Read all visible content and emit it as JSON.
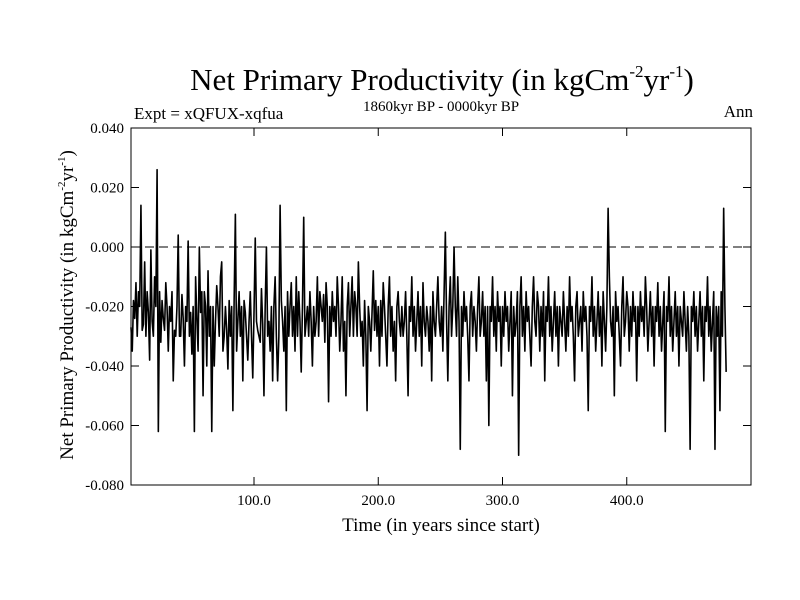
{
  "chart_data": {
    "type": "line",
    "title_main": "Net Primary Productivity (in kgCm",
    "title_sup1": "-2",
    "title_mid": "yr",
    "title_sup2": "-1",
    "title_end": ")",
    "expt_label": "Expt = xQFUX-xqfua",
    "period_label": "1860kyr BP - 0000kyr BP",
    "season_label": "Ann",
    "xlabel": "Time (in years since start)",
    "ylabel_main": "Net Primary Productivity (in kgCm",
    "ylabel_sup1": "-2",
    "ylabel_mid": "yr",
    "ylabel_sup2": "-1",
    "ylabel_end": ")",
    "xlim": [
      1,
      500
    ],
    "ylim": [
      -0.08,
      0.04
    ],
    "x_ticks": [
      100,
      200,
      300,
      400
    ],
    "x_tick_labels": [
      "100.0",
      "200.0",
      "300.0",
      "400.0"
    ],
    "y_ticks": [
      0.04,
      0.02,
      0.0,
      -0.02,
      -0.04,
      -0.06,
      -0.08
    ],
    "y_tick_labels": [
      "0.040",
      "0.020",
      "0.000",
      "-0.020",
      "-0.040",
      "-0.060",
      "-0.080"
    ],
    "reference_line": 0.0,
    "series": [
      {
        "name": "Net Primary Productivity",
        "x_start": 1,
        "x_step": 1,
        "values": [
          -0.027,
          -0.035,
          -0.018,
          -0.024,
          -0.012,
          -0.03,
          -0.015,
          -0.02,
          0.014,
          -0.028,
          -0.026,
          -0.005,
          -0.03,
          -0.015,
          -0.022,
          -0.038,
          -0.001,
          -0.025,
          -0.03,
          -0.01,
          -0.02,
          0.026,
          -0.062,
          -0.015,
          -0.032,
          -0.018,
          -0.024,
          -0.028,
          -0.012,
          -0.02,
          -0.035,
          -0.02,
          -0.025,
          -0.015,
          -0.045,
          -0.028,
          -0.03,
          -0.02,
          0.004,
          -0.03,
          -0.03,
          -0.016,
          -0.024,
          -0.04,
          -0.02,
          -0.025,
          0.002,
          -0.03,
          -0.022,
          -0.036,
          -0.02,
          -0.062,
          -0.01,
          -0.024,
          -0.035,
          0.0,
          -0.022,
          -0.015,
          -0.05,
          -0.015,
          -0.02,
          -0.04,
          -0.008,
          -0.03,
          -0.02,
          -0.062,
          -0.02,
          -0.04,
          -0.025,
          -0.013,
          -0.02,
          -0.03,
          -0.01,
          -0.005,
          -0.035,
          -0.03,
          -0.02,
          -0.028,
          -0.041,
          -0.018,
          -0.03,
          -0.02,
          -0.055,
          -0.018,
          0.011,
          -0.035,
          -0.025,
          -0.015,
          -0.03,
          -0.02,
          -0.045,
          -0.018,
          -0.022,
          -0.03,
          -0.038,
          -0.025,
          -0.015,
          -0.03,
          -0.044,
          -0.022,
          0.003,
          -0.025,
          -0.028,
          -0.03,
          -0.032,
          -0.014,
          -0.026,
          -0.05,
          -0.02,
          0.0,
          -0.03,
          -0.025,
          -0.035,
          -0.02,
          -0.045,
          -0.02,
          -0.01,
          -0.03,
          -0.045,
          -0.03,
          0.014,
          -0.018,
          -0.025,
          -0.035,
          -0.02,
          -0.055,
          -0.015,
          -0.03,
          -0.02,
          -0.012,
          -0.03,
          -0.02,
          -0.035,
          -0.01,
          -0.03,
          -0.015,
          -0.025,
          -0.042,
          -0.02,
          0.01,
          -0.03,
          -0.025,
          -0.02,
          -0.03,
          -0.015,
          -0.025,
          -0.04,
          -0.02,
          -0.03,
          -0.025,
          -0.01,
          -0.03,
          -0.015,
          -0.02,
          -0.025,
          -0.016,
          -0.032,
          -0.012,
          -0.02,
          -0.052,
          -0.02,
          -0.03,
          -0.015,
          -0.025,
          -0.02,
          -0.03,
          -0.01,
          -0.02,
          -0.035,
          -0.025,
          -0.01,
          -0.035,
          -0.025,
          -0.05,
          -0.02,
          -0.012,
          -0.03,
          -0.02,
          -0.01,
          -0.03,
          -0.015,
          -0.02,
          -0.03,
          -0.005,
          -0.02,
          -0.03,
          -0.025,
          -0.04,
          -0.018,
          -0.03,
          -0.055,
          -0.02,
          -0.025,
          -0.035,
          -0.022,
          -0.008,
          -0.028,
          -0.018,
          -0.03,
          -0.02,
          -0.04,
          -0.018,
          -0.03,
          -0.012,
          -0.02,
          -0.03,
          -0.04,
          -0.02,
          -0.01,
          -0.03,
          -0.02,
          -0.035,
          -0.025,
          -0.045,
          -0.02,
          -0.015,
          -0.025,
          -0.03,
          -0.02,
          -0.03,
          -0.025,
          -0.015,
          -0.03,
          -0.05,
          -0.02,
          -0.025,
          -0.01,
          -0.03,
          -0.02,
          -0.035,
          -0.025,
          -0.015,
          -0.03,
          -0.02,
          -0.04,
          -0.012,
          -0.025,
          -0.03,
          -0.02,
          -0.025,
          -0.035,
          -0.02,
          -0.045,
          -0.015,
          -0.025,
          -0.03,
          -0.02,
          -0.01,
          -0.025,
          -0.03,
          -0.02,
          -0.035,
          -0.015,
          0.005,
          -0.025,
          -0.045,
          -0.02,
          -0.01,
          -0.03,
          -0.02,
          0.0,
          -0.02,
          -0.03,
          -0.01,
          -0.025,
          -0.068,
          -0.02,
          -0.03,
          -0.015,
          -0.025,
          -0.02,
          -0.03,
          -0.045,
          -0.02,
          -0.015,
          -0.03,
          -0.02,
          -0.025,
          -0.035,
          -0.02,
          -0.01,
          -0.03,
          -0.025,
          -0.015,
          -0.03,
          -0.02,
          -0.045,
          -0.02,
          -0.06,
          -0.02,
          -0.025,
          -0.01,
          -0.03,
          -0.02,
          -0.035,
          -0.015,
          -0.025,
          -0.02,
          -0.04,
          -0.02,
          -0.03,
          -0.015,
          -0.025,
          -0.02,
          -0.035,
          -0.025,
          -0.015,
          -0.05,
          -0.02,
          -0.03,
          -0.025,
          -0.015,
          -0.07,
          -0.02,
          -0.01,
          -0.03,
          -0.02,
          -0.035,
          -0.015,
          -0.025,
          -0.02,
          -0.03,
          -0.04,
          -0.02,
          -0.01,
          -0.025,
          -0.03,
          -0.015,
          -0.02,
          -0.035,
          -0.02,
          -0.03,
          -0.015,
          -0.045,
          -0.02,
          -0.025,
          -0.01,
          -0.03,
          -0.02,
          -0.035,
          -0.025,
          -0.015,
          -0.03,
          -0.02,
          -0.04,
          -0.02,
          -0.025,
          -0.03,
          -0.015,
          -0.025,
          -0.035,
          -0.02,
          -0.03,
          -0.01,
          -0.025,
          -0.02,
          -0.03,
          -0.045,
          -0.02,
          -0.015,
          -0.03,
          -0.025,
          -0.02,
          -0.035,
          -0.015,
          -0.025,
          -0.02,
          -0.03,
          -0.055,
          -0.02,
          -0.025,
          -0.01,
          -0.03,
          -0.02,
          -0.035,
          -0.025,
          -0.015,
          -0.03,
          -0.02,
          -0.04,
          -0.015,
          -0.025,
          -0.035,
          -0.02,
          0.013,
          -0.01,
          -0.025,
          -0.03,
          -0.02,
          -0.05,
          -0.015,
          -0.025,
          -0.02,
          -0.03,
          -0.04,
          -0.02,
          -0.01,
          -0.03,
          -0.025,
          -0.015,
          -0.02,
          -0.035,
          -0.02,
          -0.03,
          -0.015,
          -0.025,
          -0.02,
          -0.045,
          -0.02,
          -0.03,
          -0.015,
          -0.025,
          -0.02,
          -0.03,
          -0.01,
          -0.02,
          -0.035,
          -0.025,
          -0.015,
          -0.03,
          -0.02,
          -0.04,
          -0.02,
          -0.025,
          -0.012,
          -0.03,
          -0.02,
          -0.035,
          -0.025,
          -0.015,
          -0.062,
          -0.02,
          -0.025,
          -0.01,
          -0.03,
          -0.02,
          -0.035,
          -0.025,
          -0.015,
          -0.03,
          -0.02,
          -0.04,
          -0.02,
          -0.025,
          -0.03,
          -0.015,
          -0.025,
          -0.035,
          -0.02,
          -0.03,
          -0.068,
          -0.02,
          -0.025,
          -0.015,
          -0.03,
          -0.02,
          -0.035,
          -0.025,
          -0.015,
          -0.03,
          -0.02,
          -0.045,
          -0.02,
          -0.025,
          -0.01,
          -0.03,
          -0.02,
          -0.035,
          -0.025,
          -0.015,
          -0.068,
          -0.02,
          -0.03,
          -0.02,
          -0.055,
          -0.015,
          -0.03,
          0.013,
          -0.02,
          -0.042
        ]
      }
    ]
  }
}
